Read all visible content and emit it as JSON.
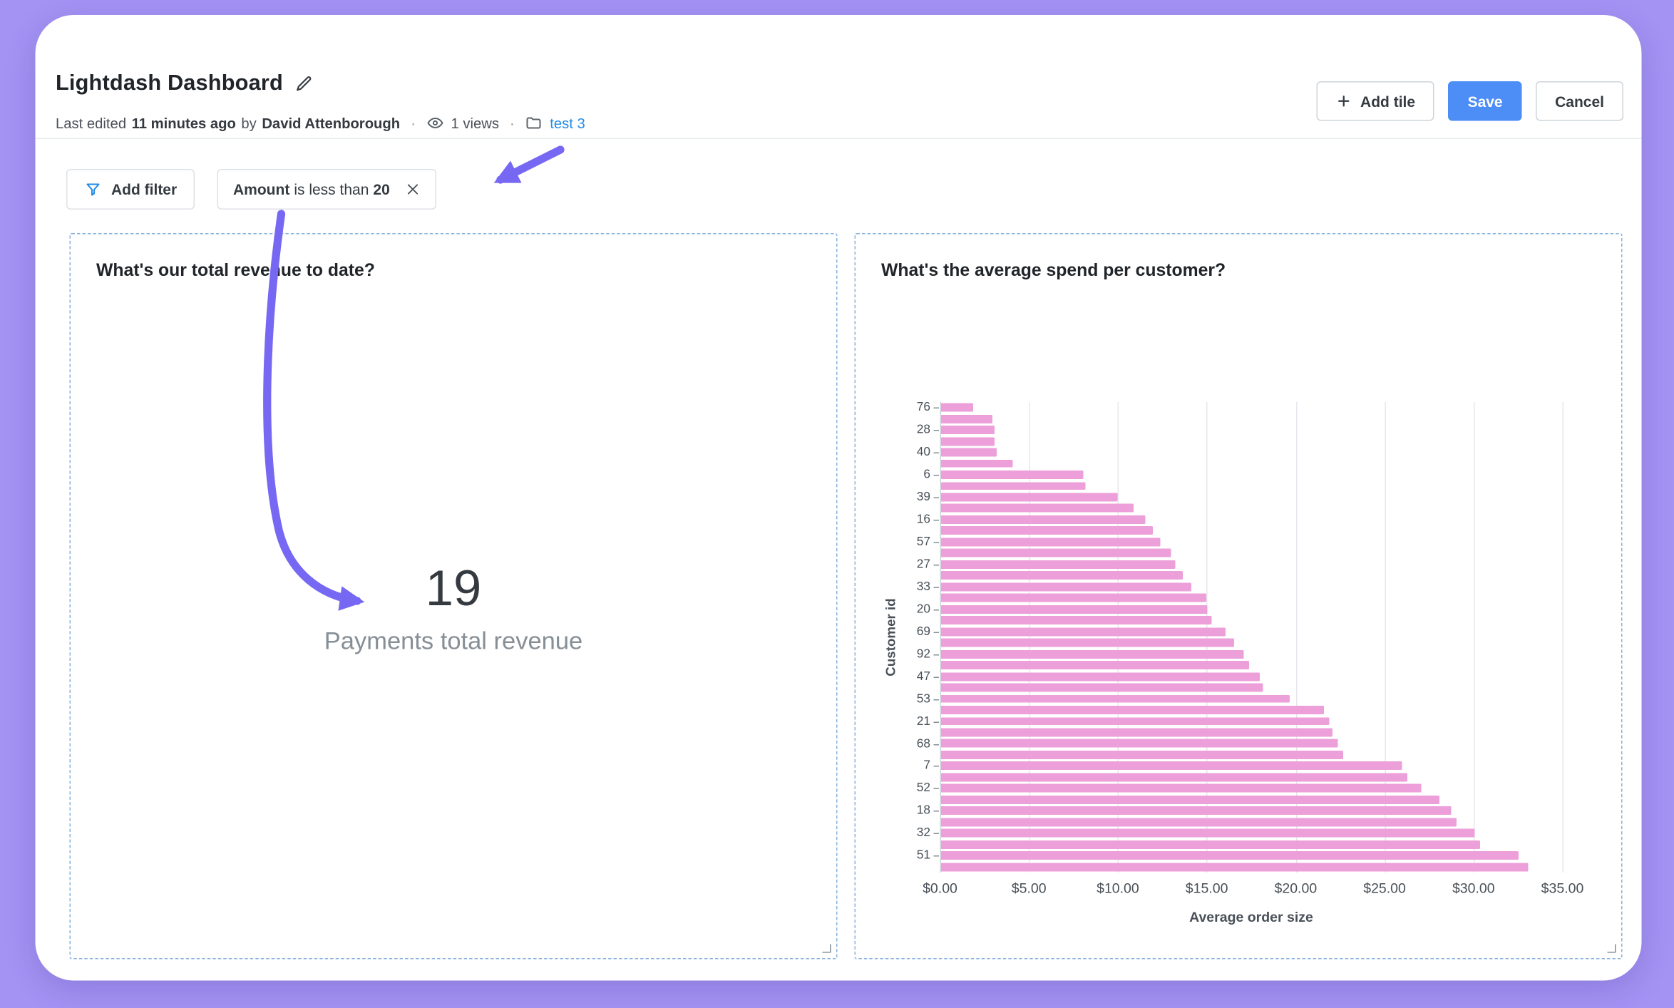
{
  "header": {
    "title": "Lightdash Dashboard",
    "meta": {
      "last_edited_prefix": "Last edited",
      "last_edited_time": "11 minutes ago",
      "by_label": "by",
      "author": "David Attenborough",
      "dot": "·",
      "views": "1 views",
      "space_link": "test 3"
    },
    "buttons": {
      "add_tile": "Add tile",
      "save": "Save",
      "cancel": "Cancel"
    }
  },
  "filters": {
    "add_filter_label": "Add filter",
    "chip": {
      "field": "Amount",
      "operator": "is less than",
      "value": "20"
    }
  },
  "tiles": {
    "revenue": {
      "title": "What's our total revenue to date?",
      "value": "19",
      "label": "Payments total revenue"
    },
    "spend": {
      "title": "What's the average spend per customer?"
    }
  },
  "chart_data": {
    "type": "bar",
    "orientation": "horizontal",
    "title": "What's the average spend per customer?",
    "xlabel": "Average order size",
    "ylabel": "Customer id",
    "xlim": [
      0,
      35
    ],
    "x_ticks": [
      "$0.00",
      "$5.00",
      "$10.00",
      "$15.00",
      "$20.00",
      "$25.00",
      "$30.00",
      "$35.00"
    ],
    "grid": "vertical",
    "bar_color": "#ec9fd8",
    "bars": [
      {
        "label": "76",
        "value": 1.8
      },
      {
        "label": "",
        "value": 2.9
      },
      {
        "label": "28",
        "value": 3.0
      },
      {
        "label": "",
        "value": 3.0
      },
      {
        "label": "40",
        "value": 3.1
      },
      {
        "label": "",
        "value": 4.0
      },
      {
        "label": "6",
        "value": 8.0
      },
      {
        "label": "",
        "value": 8.1
      },
      {
        "label": "39",
        "value": 9.9
      },
      {
        "label": "",
        "value": 10.8
      },
      {
        "label": "16",
        "value": 11.5
      },
      {
        "label": "",
        "value": 11.9
      },
      {
        "label": "57",
        "value": 12.3
      },
      {
        "label": "",
        "value": 12.9
      },
      {
        "label": "27",
        "value": 13.2
      },
      {
        "label": "",
        "value": 13.6
      },
      {
        "label": "33",
        "value": 14.1
      },
      {
        "label": "",
        "value": 14.9
      },
      {
        "label": "20",
        "value": 15.0
      },
      {
        "label": "",
        "value": 15.2
      },
      {
        "label": "69",
        "value": 16.0
      },
      {
        "label": "",
        "value": 16.5
      },
      {
        "label": "92",
        "value": 17.0
      },
      {
        "label": "",
        "value": 17.3
      },
      {
        "label": "47",
        "value": 17.9
      },
      {
        "label": "",
        "value": 18.1
      },
      {
        "label": "53",
        "value": 19.6
      },
      {
        "label": "",
        "value": 21.5
      },
      {
        "label": "21",
        "value": 21.8
      },
      {
        "label": "",
        "value": 22.0
      },
      {
        "label": "68",
        "value": 22.3
      },
      {
        "label": "",
        "value": 22.6
      },
      {
        "label": "7",
        "value": 25.9
      },
      {
        "label": "",
        "value": 26.2
      },
      {
        "label": "52",
        "value": 27.0
      },
      {
        "label": "",
        "value": 28.0
      },
      {
        "label": "18",
        "value": 28.7
      },
      {
        "label": "",
        "value": 29.0
      },
      {
        "label": "32",
        "value": 30.0
      },
      {
        "label": "",
        "value": 30.3
      },
      {
        "label": "51",
        "value": 32.5
      },
      {
        "label": "",
        "value": 33.0
      }
    ]
  },
  "colors": {
    "page_background": "#a493f3",
    "accent_purple": "#7668f2",
    "save_blue": "#4c8df6",
    "link_blue": "#228be6",
    "bar_pink": "#ec9fd8",
    "tile_border": "#87b2de"
  }
}
